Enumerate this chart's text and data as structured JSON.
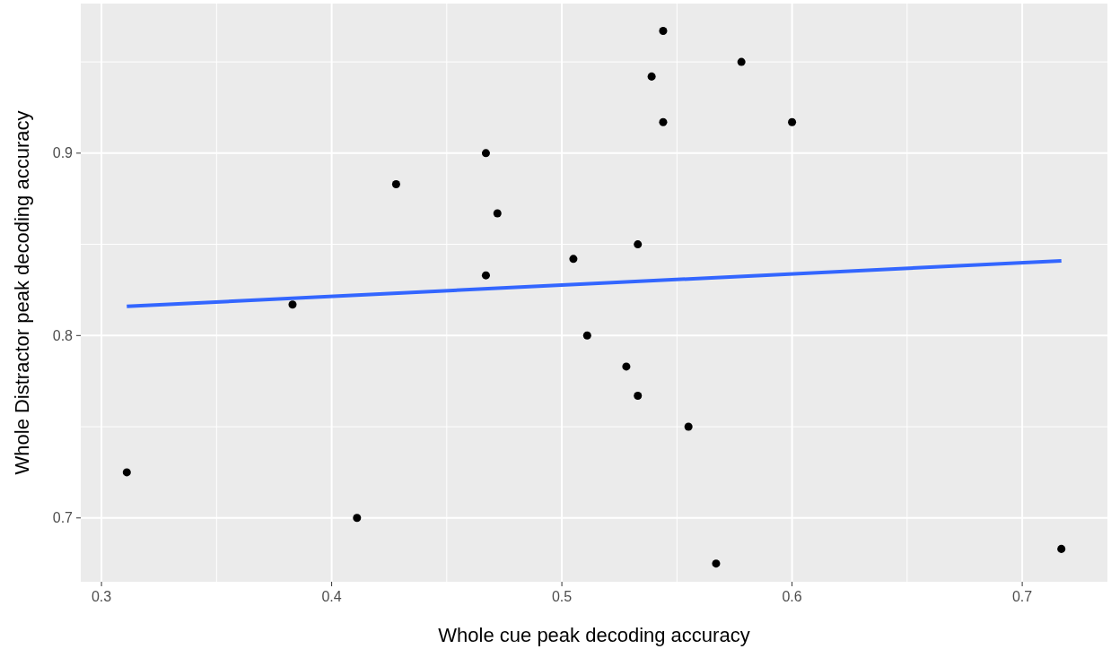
{
  "chart_data": {
    "type": "scatter",
    "xlabel": "Whole cue peak decoding accuracy",
    "ylabel": "Whole Distractor peak decoding accuracy",
    "xlim": [
      0.291,
      0.737
    ],
    "ylim": [
      0.665,
      0.982
    ],
    "xticks": [
      0.3,
      {
        "value": 0.35,
        "label": null
      },
      0.4,
      {
        "value": 0.45,
        "label": null
      },
      0.5,
      {
        "value": 0.55,
        "label": null
      },
      0.6,
      {
        "value": 0.65,
        "label": null
      },
      0.7
    ],
    "yticks": [
      0.7,
      {
        "value": 0.75,
        "label": null
      },
      0.8,
      {
        "value": 0.85,
        "label": null
      },
      0.9,
      {
        "value": 0.95,
        "label": null
      }
    ],
    "grid": true,
    "series": [
      {
        "marker": "circle",
        "color": "#000000",
        "x": [
          0.311,
          0.383,
          0.411,
          0.428,
          0.467,
          0.467,
          0.472,
          0.505,
          0.511,
          0.528,
          0.533,
          0.533,
          0.539,
          0.544,
          0.544,
          0.555,
          0.567,
          0.578,
          0.6,
          0.717
        ],
        "values": [
          0.725,
          0.817,
          0.7,
          0.883,
          0.9,
          0.833,
          0.867,
          0.842,
          0.8,
          0.783,
          0.85,
          0.767,
          0.942,
          0.967,
          0.917,
          0.75,
          0.675,
          0.95,
          0.917,
          0.683
        ]
      },
      {
        "type": "line",
        "color": "#3366ff",
        "x": [
          0.311,
          0.717
        ],
        "values": [
          0.816,
          0.841
        ]
      }
    ]
  }
}
